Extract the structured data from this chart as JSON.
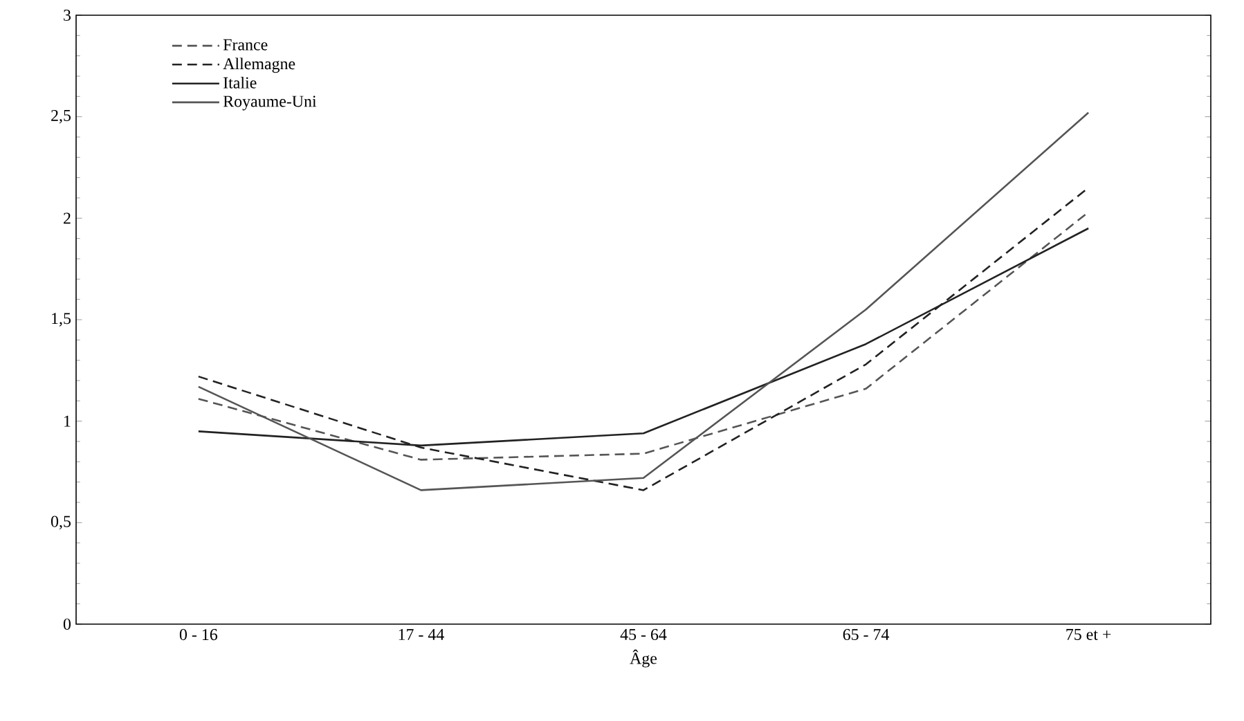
{
  "chart_data": {
    "type": "line",
    "xlabel": "Âge",
    "categories": [
      "0 - 16",
      "17 - 44",
      "45 - 64",
      "65 - 74",
      "75 et +"
    ],
    "series": [
      {
        "name": "France",
        "color": "#555555",
        "line_style": "dashed",
        "values": [
          1.11,
          0.81,
          0.84,
          1.16,
          2.03
        ]
      },
      {
        "name": "Allemagne",
        "color": "#222222",
        "line_style": "dashed",
        "values": [
          1.22,
          0.87,
          0.66,
          1.28,
          2.15
        ]
      },
      {
        "name": "Italie",
        "color": "#222222",
        "line_style": "solid",
        "values": [
          0.95,
          0.88,
          0.94,
          1.38,
          1.95
        ]
      },
      {
        "name": "Royaume-Uni",
        "color": "#555555",
        "line_style": "solid",
        "values": [
          1.17,
          0.66,
          0.72,
          1.55,
          2.52
        ]
      }
    ],
    "ylim": [
      0,
      3
    ],
    "yticks": [
      0,
      {
        "value": 0.5,
        "label": "0,5"
      },
      1,
      {
        "value": 1.5,
        "label": "1,5"
      },
      2,
      {
        "value": 2.5,
        "label": "2,5"
      },
      3
    ],
    "legend": "top left",
    "grid": false,
    "marker": "none"
  }
}
